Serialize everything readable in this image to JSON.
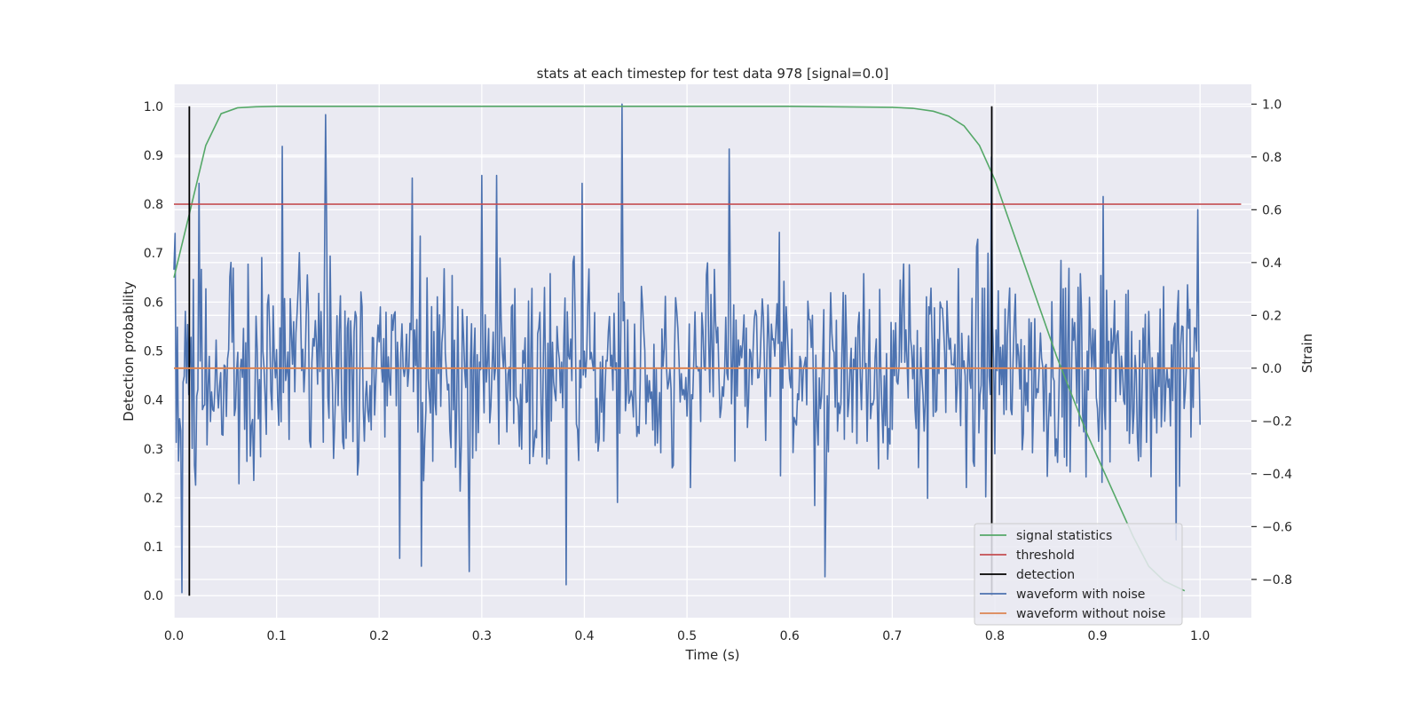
{
  "chart_data": {
    "type": "line",
    "title": "stats at each timestep for test data 978 [signal=0.0]",
    "xlabel": "Time (s)",
    "ylabel": "Detection probability",
    "y2label": "Strain",
    "xlim": [
      0.0,
      1.05
    ],
    "ylim": [
      -0.045,
      1.045
    ],
    "y2lim": [
      -0.945,
      1.075
    ],
    "x_ticks": [
      0.0,
      0.1,
      0.2,
      0.3,
      0.4,
      0.5,
      0.6,
      0.7,
      0.8,
      0.9,
      1.0
    ],
    "x_tick_labels": [
      "0.0",
      "0.1",
      "0.2",
      "0.3",
      "0.4",
      "0.5",
      "0.6",
      "0.7",
      "0.8",
      "0.9",
      "1.0"
    ],
    "y_ticks": [
      0.0,
      0.1,
      0.2,
      0.3,
      0.4,
      0.5,
      0.6,
      0.7,
      0.8,
      0.9,
      1.0
    ],
    "y_tick_labels": [
      "0.0",
      "0.1",
      "0.2",
      "0.3",
      "0.4",
      "0.5",
      "0.6",
      "0.7",
      "0.8",
      "0.9",
      "1.0"
    ],
    "y2_ticks": [
      -0.8,
      -0.6,
      -0.4,
      -0.2,
      0.0,
      0.2,
      0.4,
      0.6,
      0.8,
      1.0
    ],
    "y2_tick_labels": [
      "−0.8",
      "−0.6",
      "−0.4",
      "−0.2",
      "0.0",
      "0.2",
      "0.4",
      "0.6",
      "0.8",
      "1.0"
    ],
    "grid": true,
    "legend_position": "bottom-right",
    "background_color": "#eaeaf2",
    "series": [
      {
        "name": "signal statistics",
        "axis": "left",
        "color": "#55a868",
        "x": [
          0.0,
          0.015,
          0.031,
          0.046,
          0.062,
          0.08,
          0.1,
          0.2,
          0.3,
          0.4,
          0.5,
          0.6,
          0.7,
          0.72,
          0.74,
          0.755,
          0.77,
          0.785,
          0.8,
          0.815,
          0.83,
          0.845,
          0.86,
          0.875,
          0.89,
          0.905,
          0.92,
          0.935,
          0.95,
          0.965,
          0.985
        ],
        "y": [
          0.65,
          0.78,
          0.92,
          0.985,
          0.997,
          0.999,
          1.0,
          1.0,
          1.0,
          1.0,
          1.0,
          1.0,
          0.998,
          0.996,
          0.99,
          0.98,
          0.96,
          0.92,
          0.85,
          0.76,
          0.67,
          0.58,
          0.49,
          0.41,
          0.33,
          0.26,
          0.19,
          0.12,
          0.06,
          0.03,
          0.01
        ]
      },
      {
        "name": "threshold",
        "axis": "left",
        "color": "#c44e52",
        "x": [
          0.0,
          1.04
        ],
        "y": [
          0.8,
          0.8
        ]
      },
      {
        "name": "detection",
        "axis": "left",
        "color": "#000000",
        "segments": [
          {
            "x": 0.015,
            "y": [
              0.0,
              1.0
            ]
          },
          {
            "x": 0.797,
            "y": [
              0.0,
              1.0
            ]
          }
        ]
      },
      {
        "name": "waveform with noise",
        "axis": "right",
        "color": "#4c72b0",
        "x_start": 0.0,
        "x_end": 1.0,
        "peaks": [
          {
            "x": 0.008,
            "y": -0.85
          },
          {
            "x": 0.024,
            "y": 0.7
          },
          {
            "x": 0.106,
            "y": 0.84
          },
          {
            "x": 0.148,
            "y": 0.96
          },
          {
            "x": 0.22,
            "y": -0.72
          },
          {
            "x": 0.232,
            "y": 0.72
          },
          {
            "x": 0.241,
            "y": -0.75
          },
          {
            "x": 0.288,
            "y": -0.77
          },
          {
            "x": 0.3,
            "y": 0.73
          },
          {
            "x": 0.314,
            "y": 0.73
          },
          {
            "x": 0.382,
            "y": -0.82
          },
          {
            "x": 0.398,
            "y": 0.7
          },
          {
            "x": 0.437,
            "y": 1.0
          },
          {
            "x": 0.541,
            "y": 0.83
          },
          {
            "x": 0.634,
            "y": -0.79
          },
          {
            "x": 0.797,
            "y": 0.8
          },
          {
            "x": 0.906,
            "y": 0.65
          },
          {
            "x": 0.977,
            "y": -0.65
          },
          {
            "x": 0.998,
            "y": 0.6
          }
        ]
      },
      {
        "name": "waveform without noise",
        "axis": "right",
        "color": "#dd8452",
        "x": [
          0.0,
          1.0
        ],
        "y": [
          0.0,
          0.0
        ]
      }
    ]
  }
}
